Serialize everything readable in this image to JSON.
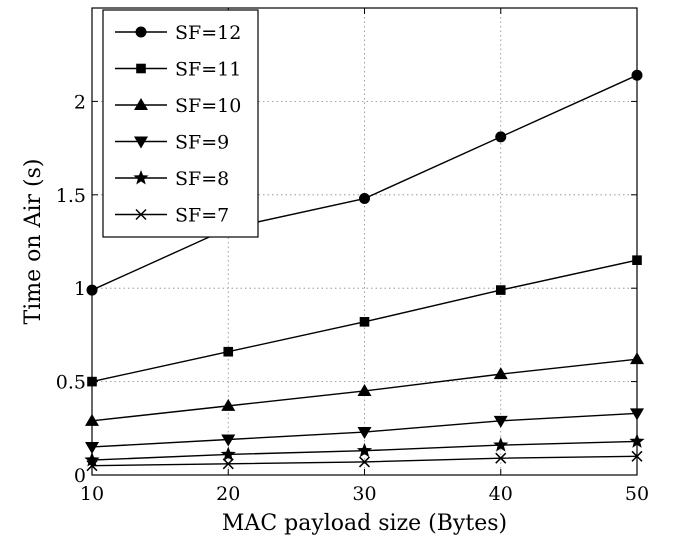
{
  "chart_data": {
    "type": "line",
    "xlabel": "MAC payload size (Bytes)",
    "ylabel": "Time on Air (s)",
    "xlim": [
      10,
      50
    ],
    "ylim": [
      0,
      2.5
    ],
    "x": [
      10,
      20,
      30,
      40,
      50
    ],
    "xticks": [
      "10",
      "20",
      "30",
      "40",
      "50"
    ],
    "yticks": [
      {
        "value": 0,
        "label": "0"
      },
      {
        "value": 0.5,
        "label": "0.5"
      },
      {
        "value": 1,
        "label": "1"
      },
      {
        "value": 1.5,
        "label": "1.5"
      },
      {
        "value": 2,
        "label": "2"
      }
    ],
    "grid": true,
    "legend_position": "top-left",
    "series": [
      {
        "name": "SF=12",
        "marker": "circle",
        "values": [
          0.99,
          1.32,
          1.48,
          1.81,
          2.14
        ]
      },
      {
        "name": "SF=11",
        "marker": "square",
        "values": [
          0.5,
          0.66,
          0.82,
          0.99,
          1.15
        ]
      },
      {
        "name": "SF=10",
        "marker": "triangle-up",
        "values": [
          0.29,
          0.37,
          0.45,
          0.54,
          0.62
        ]
      },
      {
        "name": "SF=9",
        "marker": "triangle-down",
        "values": [
          0.15,
          0.19,
          0.23,
          0.29,
          0.33
        ]
      },
      {
        "name": "SF=8",
        "marker": "star",
        "values": [
          0.08,
          0.11,
          0.13,
          0.16,
          0.18
        ]
      },
      {
        "name": "SF=7",
        "marker": "x",
        "values": [
          0.05,
          0.06,
          0.07,
          0.09,
          0.1
        ]
      }
    ],
    "color": "#000000"
  }
}
